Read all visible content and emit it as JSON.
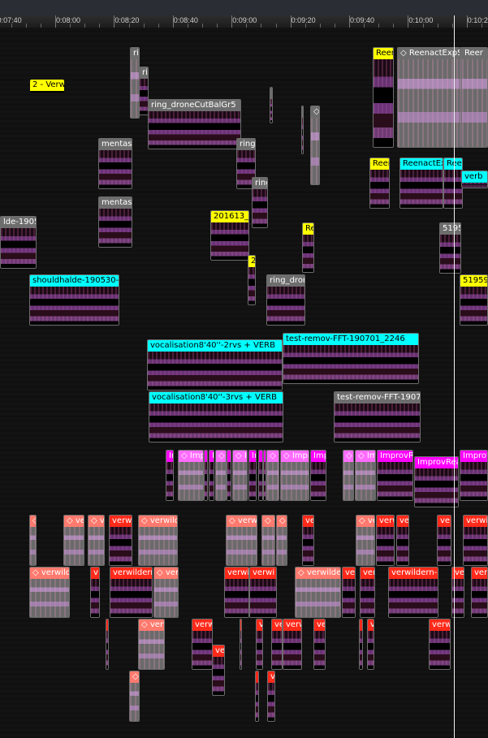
{
  "ruler": {
    "ticks": [
      "0:07:40",
      "0:08:00",
      "0:08:20",
      "0:08:40",
      "0:09:00",
      "0:09:20",
      "0:09:40",
      "0:10:00",
      "0:10:2"
    ]
  },
  "colors": {
    "yellow": "#ffff00",
    "cyan": "#00ffff",
    "grey": "#6d6d6d",
    "magenta": "#ff00ff",
    "pink": "#ff6cff",
    "red": "#ff2a1a",
    "salmon": "#ff7a6e",
    "playhead": "#f0f0f0"
  },
  "clips": [
    {
      "label": "ri",
      "color": "grey"
    },
    {
      "label": "rir",
      "color": "grey"
    },
    {
      "label": "2 - Verwi",
      "color": "yellow"
    },
    {
      "label": "ring_droneCutBalGr5",
      "color": "grey"
    },
    {
      "label": "",
      "color": "grey"
    },
    {
      "label": "",
      "color": "grey"
    },
    {
      "label": "◇",
      "color": "grey"
    },
    {
      "label": "Reen",
      "color": "yellow"
    },
    {
      "label": "◇ ReenactExpStu",
      "color": "grey"
    },
    {
      "label": "",
      "color": "grey"
    },
    {
      "label": "Reer",
      "color": "grey"
    },
    {
      "label": "mentasm",
      "color": "grey"
    },
    {
      "label": "mentasm",
      "color": "grey"
    },
    {
      "label": "ring_",
      "color": "grey"
    },
    {
      "label": "ring",
      "color": "grey"
    },
    {
      "label": "lde-190530",
      "color": "grey"
    },
    {
      "label": "201613_B",
      "color": "yellow"
    },
    {
      "label": "2",
      "color": "yellow"
    },
    {
      "label": "Re",
      "color": "yellow"
    },
    {
      "label": "Reen",
      "color": "yellow"
    },
    {
      "label": "ReenactExp",
      "color": "cyan"
    },
    {
      "label": "Ree",
      "color": "cyan"
    },
    {
      "label": "verb",
      "color": "cyan"
    },
    {
      "label": "5195",
      "color": "grey"
    },
    {
      "label": "519599",
      "color": "yellow"
    },
    {
      "label": "shouldhalde-190530-184",
      "color": "cyan"
    },
    {
      "label": "ring_dron",
      "color": "grey"
    },
    {
      "label": "vocalisation8'40''-2rvs + VERB",
      "color": "cyan"
    },
    {
      "label": "test-remov-FFT-190701_2246",
      "color": "cyan"
    },
    {
      "label": "vocalisation8'40''-3rvs + VERB",
      "color": "cyan"
    },
    {
      "label": "test-remov-FFT-190701",
      "color": "grey"
    },
    {
      "label": "Ir",
      "color": "magenta"
    },
    {
      "label": "◇ Imp",
      "color": "pink"
    },
    {
      "label": "",
      "color": "magenta"
    },
    {
      "label": "I",
      "color": "magenta"
    },
    {
      "label": "◇",
      "color": "pink"
    },
    {
      "label": "I",
      "color": "magenta"
    },
    {
      "label": "◇ I",
      "color": "pink"
    },
    {
      "label": "Ir",
      "color": "magenta"
    },
    {
      "label": "",
      "color": "magenta"
    },
    {
      "label": "",
      "color": "magenta"
    },
    {
      "label": "◇",
      "color": "pink"
    },
    {
      "label": "◇ Impr",
      "color": "pink"
    },
    {
      "label": "Imp",
      "color": "magenta"
    },
    {
      "label": "◇",
      "color": "pink"
    },
    {
      "label": "◇ Im",
      "color": "pink"
    },
    {
      "label": "ImprovRe",
      "color": "magenta"
    },
    {
      "label": "ImprovReac",
      "color": "magenta"
    },
    {
      "label": "Improv",
      "color": "magenta"
    },
    {
      "label": "◇",
      "color": "salmon"
    },
    {
      "label": "◇ ver",
      "color": "salmon"
    },
    {
      "label": "◇ v",
      "color": "salmon"
    },
    {
      "label": "verwi",
      "color": "red"
    },
    {
      "label": "◇ verwilde",
      "color": "salmon"
    },
    {
      "label": "◇ verwi",
      "color": "salmon"
    },
    {
      "label": "◇ v",
      "color": "salmon"
    },
    {
      "label": "◇",
      "color": "salmon"
    },
    {
      "label": "ve",
      "color": "red"
    },
    {
      "label": "◇ ve",
      "color": "salmon"
    },
    {
      "label": "verw",
      "color": "red"
    },
    {
      "label": "ve",
      "color": "red"
    },
    {
      "label": "ve",
      "color": "red"
    },
    {
      "label": "verwilde",
      "color": "red"
    },
    {
      "label": "◇ verwilde",
      "color": "salmon"
    },
    {
      "label": "v",
      "color": "red"
    },
    {
      "label": "verwildern-",
      "color": "red"
    },
    {
      "label": "◇ ver",
      "color": "salmon"
    },
    {
      "label": "verwi",
      "color": "red"
    },
    {
      "label": "verwi",
      "color": "red"
    },
    {
      "label": "◇ verwildern",
      "color": "salmon"
    },
    {
      "label": "ver",
      "color": "red"
    },
    {
      "label": "ver",
      "color": "red"
    },
    {
      "label": "verwildern-20",
      "color": "red"
    },
    {
      "label": "ve",
      "color": "red"
    },
    {
      "label": "ver",
      "color": "red"
    },
    {
      "label": "",
      "color": "red"
    },
    {
      "label": "◇ verw",
      "color": "salmon"
    },
    {
      "label": "verw",
      "color": "red"
    },
    {
      "label": "",
      "color": "red"
    },
    {
      "label": "v",
      "color": "red"
    },
    {
      "label": "ve",
      "color": "red"
    },
    {
      "label": "verw",
      "color": "red"
    },
    {
      "label": "ve",
      "color": "red"
    },
    {
      "label": "",
      "color": "red"
    },
    {
      "label": "v",
      "color": "red"
    },
    {
      "label": "verw",
      "color": "red"
    },
    {
      "label": "ve",
      "color": "red"
    },
    {
      "label": "◇",
      "color": "salmon"
    },
    {
      "label": "",
      "color": "red"
    },
    {
      "label": "v",
      "color": "red"
    }
  ]
}
